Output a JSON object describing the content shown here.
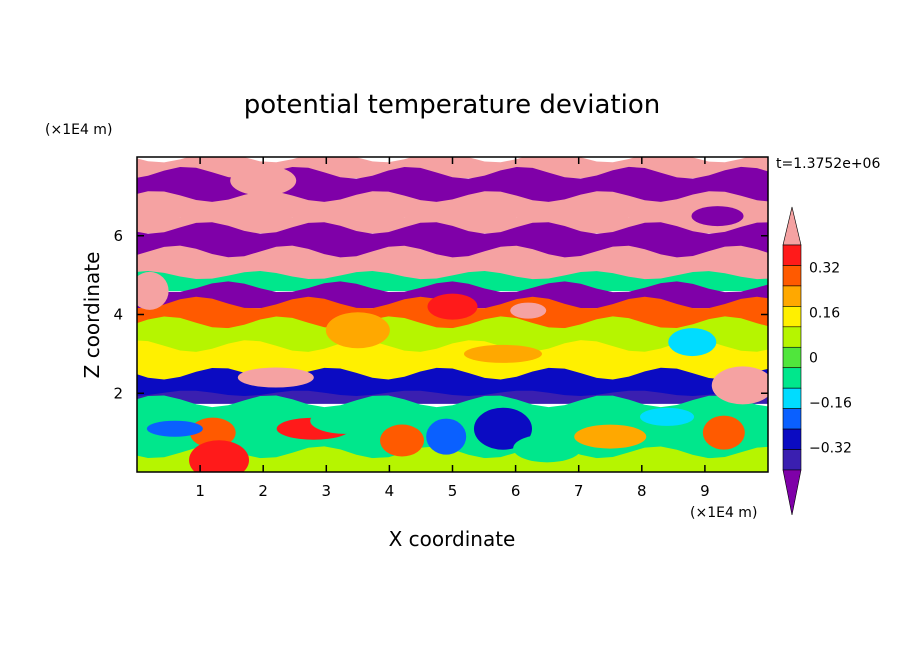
{
  "chart_data": {
    "type": "heatmap",
    "title": "potential temperature deviation",
    "xlabel": "X coordinate",
    "ylabel": "Z coordinate",
    "x_unit": "(×1E4 m)",
    "y_unit": "(×1E4 m)",
    "time_label": "t=1.3752e+06",
    "xlim": [
      0,
      10
    ],
    "ylim": [
      0,
      8
    ],
    "x_ticks": [
      1,
      2,
      3,
      4,
      5,
      6,
      7,
      8,
      9
    ],
    "y_ticks": [
      2,
      4,
      6
    ],
    "colorbar": {
      "levels": [
        -0.48,
        -0.4,
        -0.32,
        -0.24,
        -0.16,
        -0.08,
        0,
        0.08,
        0.16,
        0.24,
        0.32,
        0.4,
        0.48
      ],
      "labeled_levels": [
        "0.32",
        "0.16",
        "0",
        "−0.16",
        "−0.32"
      ],
      "labeled_values": [
        0.32,
        0.16,
        0,
        -0.16,
        -0.32
      ],
      "colors": [
        "#7f00a8",
        "#3a1fb0",
        "#0b0bc2",
        "#0a60ff",
        "#00dcff",
        "#00e78c",
        "#50e63c",
        "#b6f500",
        "#fff000",
        "#ffa800",
        "#ff5a00",
        "#ff1a1a",
        "#f5a2a2"
      ],
      "over_color": "#f5a2a2",
      "under_color": "#7f00a8"
    },
    "bands": [
      {
        "z": [
          7.6,
          8.0
        ],
        "value": 0.5
      },
      {
        "z": [
          7.0,
          7.6
        ],
        "value": -0.5
      },
      {
        "z": [
          6.6,
          7.0
        ],
        "value": 0.5
      },
      {
        "z": [
          6.2,
          6.6
        ],
        "value": 0.5
      },
      {
        "z": [
          5.6,
          6.2
        ],
        "value": -0.5
      },
      {
        "z": [
          5.0,
          5.6
        ],
        "value": 0.5
      },
      {
        "z": [
          4.7,
          5.0
        ],
        "value": -0.1
      },
      {
        "z": [
          4.3,
          4.7
        ],
        "value": -0.5
      },
      {
        "z": [
          3.8,
          4.3
        ],
        "value": 0.3
      },
      {
        "z": [
          3.2,
          3.8
        ],
        "value": 0.05
      },
      {
        "z": [
          2.5,
          3.2
        ],
        "value": 0.1
      },
      {
        "z": [
          2.0,
          2.5
        ],
        "value": -0.4
      },
      {
        "z": [
          1.8,
          2.0
        ],
        "value": -0.45
      },
      {
        "z": [
          1.2,
          1.8
        ],
        "value": -0.1
      },
      {
        "z": [
          0.5,
          1.2
        ],
        "value": -0.12
      },
      {
        "z": [
          0.0,
          0.5
        ],
        "value": 0.05
      }
    ],
    "patches": [
      {
        "x": 6.2,
        "z": 4.1,
        "value": 0.5
      },
      {
        "x": 5.0,
        "z": 4.2,
        "value": 0.36
      },
      {
        "x": 3.5,
        "z": 3.6,
        "value": 0.2
      },
      {
        "x": 5.8,
        "z": 3.0,
        "value": 0.2
      },
      {
        "x": 8.8,
        "z": 3.3,
        "value": -0.2
      },
      {
        "x": 9.6,
        "z": 2.2,
        "value": 0.5
      },
      {
        "x": 2.2,
        "z": 2.4,
        "value": 0.5
      },
      {
        "x": 1.2,
        "z": 1.0,
        "value": 0.3
      },
      {
        "x": 1.3,
        "z": 0.3,
        "value": 0.36
      },
      {
        "x": 2.8,
        "z": 1.1,
        "value": 0.36
      },
      {
        "x": 4.2,
        "z": 0.8,
        "value": 0.3
      },
      {
        "x": 5.8,
        "z": 1.1,
        "value": -0.36
      },
      {
        "x": 7.5,
        "z": 0.9,
        "value": 0.2
      },
      {
        "x": 9.3,
        "z": 1.0,
        "value": 0.3
      },
      {
        "x": 0.6,
        "z": 1.1,
        "value": -0.28
      },
      {
        "x": 3.3,
        "z": 1.3,
        "value": -0.12
      },
      {
        "x": 4.9,
        "z": 0.9,
        "value": -0.28
      },
      {
        "x": 8.4,
        "z": 1.4,
        "value": -0.2
      },
      {
        "x": 6.5,
        "z": 0.6,
        "value": -0.12
      },
      {
        "x": 0.2,
        "z": 4.6,
        "value": 0.5
      },
      {
        "x": 9.2,
        "z": 6.5,
        "value": -0.5
      },
      {
        "x": 2.0,
        "z": 7.4,
        "value": 0.5
      }
    ]
  }
}
